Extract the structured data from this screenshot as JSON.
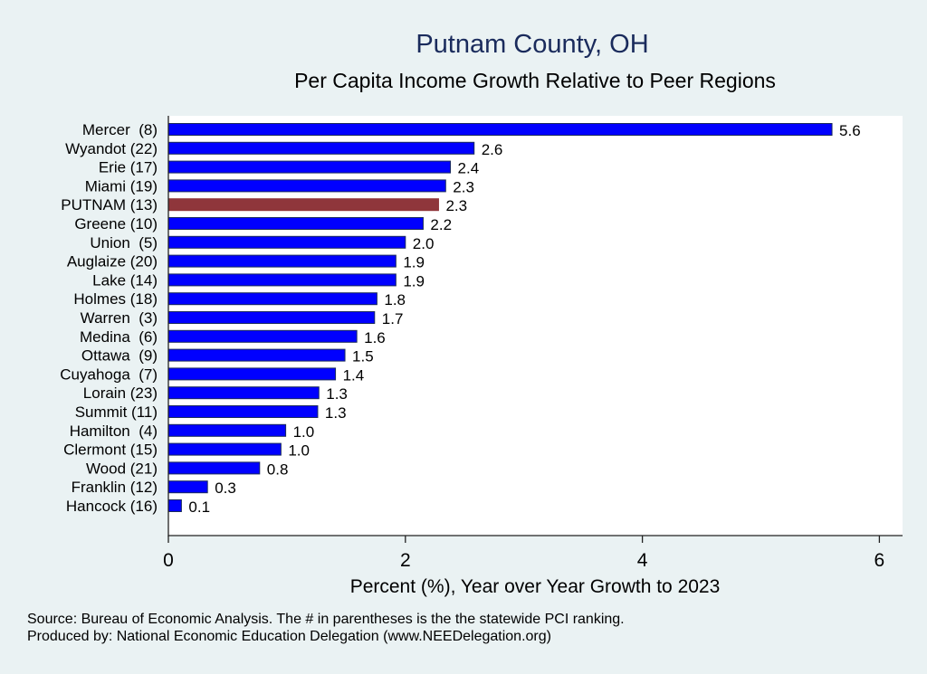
{
  "chart_data": {
    "type": "bar",
    "orientation": "horizontal",
    "title": "Putnam County, OH",
    "subtitle": "Per Capita Income Growth Relative to Peer Regions",
    "xlabel": "Percent (%), Year over Year Growth to 2023",
    "ylabel": "",
    "xlim": [
      0,
      6.2
    ],
    "xticks": [
      0,
      2,
      4,
      6
    ],
    "categories": [
      "Mercer  (8)",
      "Wyandot (22)",
      "Erie (17)",
      "Miami (19)",
      "PUTNAM (13)",
      "Greene (10)",
      "Union  (5)",
      "Auglaize (20)",
      "Lake (14)",
      "Holmes (18)",
      "Warren  (3)",
      "Medina  (6)",
      "Ottawa  (9)",
      "Cuyahoga  (7)",
      "Lorain (23)",
      "Summit (11)",
      "Hamilton  (4)",
      "Clermont (15)",
      "Wood (21)",
      "Franklin (12)",
      "Hancock (16)"
    ],
    "values": [
      5.6,
      2.58,
      2.38,
      2.34,
      2.28,
      2.15,
      2.0,
      1.92,
      1.92,
      1.76,
      1.74,
      1.59,
      1.49,
      1.41,
      1.27,
      1.26,
      0.99,
      0.95,
      0.77,
      0.33,
      0.11
    ],
    "data_labels": [
      "5.6",
      "2.6",
      "2.4",
      "2.3",
      "2.3",
      "2.2",
      "2.0",
      "1.9",
      "1.9",
      "1.8",
      "1.7",
      "1.6",
      "1.5",
      "1.4",
      "1.3",
      "1.3",
      "1.0",
      "1.0",
      "0.8",
      "0.3",
      "0.1"
    ],
    "highlight_index": 4,
    "colors": {
      "bar": "#0000ff",
      "highlight": "#8f363b",
      "title": "#1a2b5c",
      "background": "#eaf2f3",
      "plot": "#ffffff"
    },
    "grid": false,
    "legend": "none"
  },
  "footnotes": [
    "Source: Bureau of Economic Analysis. The # in parentheses is the the statewide PCI ranking.",
    "Produced by: National Economic Education Delegation (www.NEEDelegation.org)"
  ]
}
